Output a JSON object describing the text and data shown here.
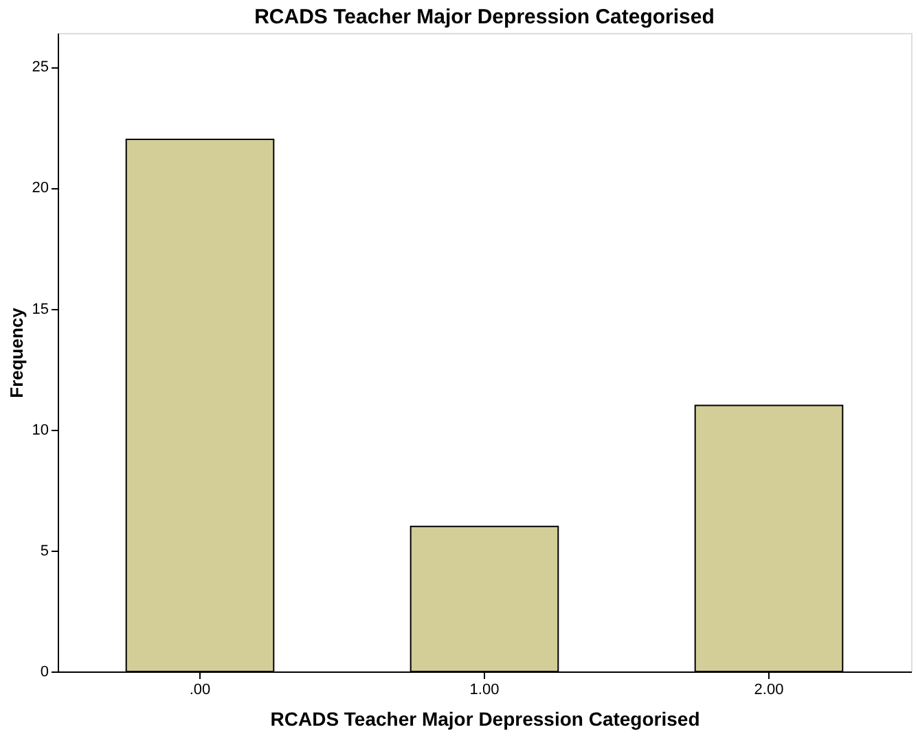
{
  "chart_data": {
    "type": "bar",
    "title": "RCADS Teacher Major Depression Categorised",
    "xlabel": "RCADS Teacher Major Depression Categorised",
    "ylabel": "Frequency",
    "categories": [
      ".00",
      "1.00",
      "2.00"
    ],
    "values": [
      22,
      6,
      11
    ],
    "color": "#d3ce97",
    "ylim": [
      0,
      26.4
    ],
    "yticks": [
      0,
      5,
      10,
      15,
      20,
      25
    ],
    "grid": false
  }
}
